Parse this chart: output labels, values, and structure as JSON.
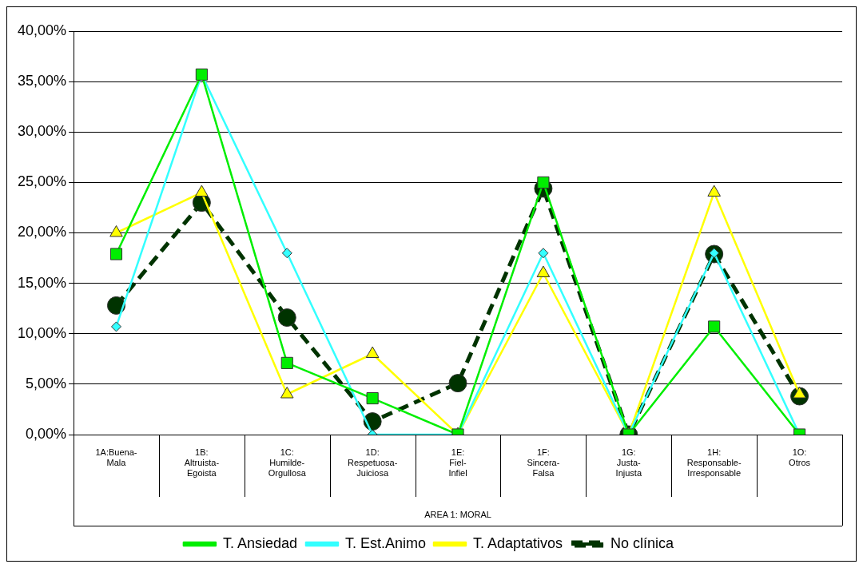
{
  "chart_data": {
    "type": "line",
    "xlabel": "AREA 1: MORAL",
    "categories": [
      "1A:Buena-Mala",
      "1B: Altruista-Egoista",
      "1C: Humilde-Orgullosa",
      "1D: Respetuosa-Juiciosa",
      "1E: Fiel-Infiel",
      "1F: Sincera-Falsa",
      "1G: Justa-Injusta",
      "1H: Responsable-Irresponsable",
      "1O: Otros"
    ],
    "series": [
      {
        "name": "T. Est.Animo",
        "color": "#33ffff",
        "marker": "diamond",
        "line_style": "solid",
        "values": [
          10.7,
          35.7,
          18,
          0,
          0,
          18,
          0,
          18,
          0
        ]
      },
      {
        "name": "T. Ansiedad",
        "color": "#00ee00",
        "marker": "square",
        "line_style": "solid",
        "values": [
          17.9,
          35.7,
          7.1,
          3.6,
          0,
          25,
          0,
          10.7,
          0
        ]
      },
      {
        "name": "T. Adaptativos",
        "color": "#ffff00",
        "marker": "triangle",
        "line_style": "solid",
        "values": [
          20,
          24,
          4,
          8,
          0,
          16,
          0,
          24,
          4
        ]
      },
      {
        "name": "No clínica",
        "color": "#003300",
        "marker": "circle",
        "line_style": "dashed",
        "values": [
          12.8,
          23,
          11.6,
          1.3,
          5.1,
          24.4,
          0,
          17.9,
          3.8
        ]
      }
    ],
    "ylim": [
      0,
      40
    ],
    "yticks": [
      {
        "value": 0,
        "label": "0,00%"
      },
      {
        "value": 5,
        "label": "5,00%"
      },
      {
        "value": 10,
        "label": "10,00%"
      },
      {
        "value": 15,
        "label": "15,00%"
      },
      {
        "value": 20,
        "label": "20,00%"
      },
      {
        "value": 25,
        "label": "25,00%"
      },
      {
        "value": 30,
        "label": "30,00%"
      },
      {
        "value": 35,
        "label": "35,00%"
      },
      {
        "value": 40,
        "label": "40,00%"
      }
    ],
    "grid": "y",
    "legend": "bottom"
  }
}
